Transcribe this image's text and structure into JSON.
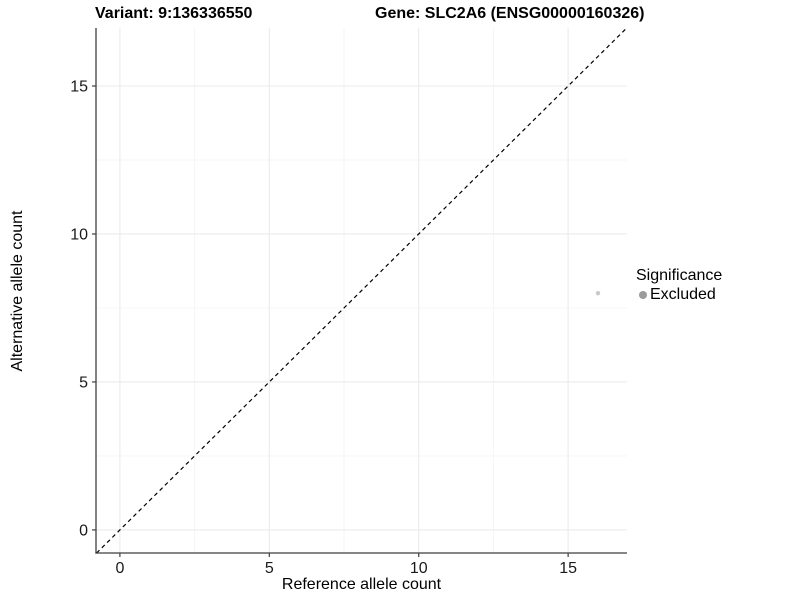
{
  "figure": {
    "title_variant": "Variant: 9:136336550",
    "title_gene": "Gene: SLC2A6 (ENSG00000160326)"
  },
  "chart_data": {
    "type": "scatter",
    "title": "Variant: 9:136336550   Gene: SLC2A6 (ENSG00000160326)",
    "xlabel": "Reference allele count",
    "ylabel": "Alternative allele count",
    "xlim": [
      -0.8,
      16.97
    ],
    "ylim": [
      -0.78,
      16.96
    ],
    "x_ticks": [
      0,
      5,
      10,
      15
    ],
    "y_ticks": [
      0,
      5,
      10,
      15
    ],
    "x_minor_ticks": [
      2.5,
      7.5,
      12.5
    ],
    "y_minor_ticks": [
      2.5,
      7.5,
      12.5
    ],
    "grid": true,
    "points": [
      {
        "x": 16,
        "y": 8,
        "series": "Excluded"
      }
    ],
    "identity_line": {
      "slope": 1,
      "intercept": 0,
      "style": "dashed",
      "color": "#000000"
    },
    "legend": {
      "position": "right",
      "title": "Significance",
      "items": [
        {
          "label": "Excluded",
          "color": "#9b9b9b"
        }
      ]
    },
    "colors": {
      "point": "#c9c9c9",
      "grid_major": "#ebebeb",
      "grid_minor": "#f5f5f5",
      "axis_line": "#3f3f3f",
      "tick_label": "#1a1a1a",
      "background": "#ffffff"
    }
  }
}
